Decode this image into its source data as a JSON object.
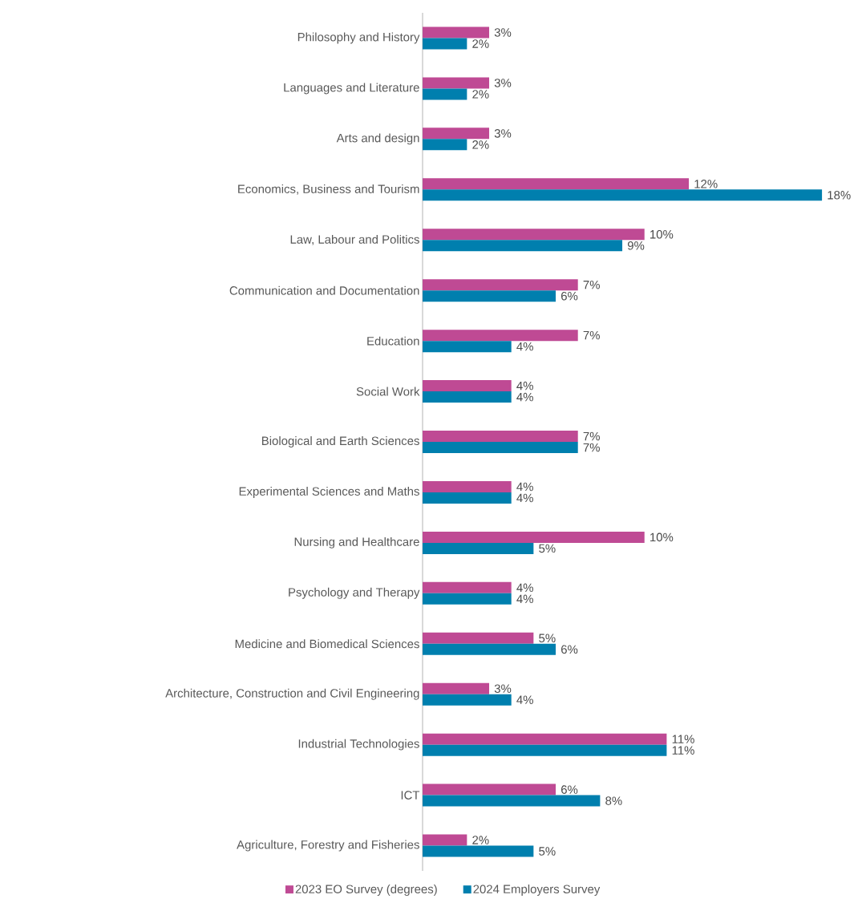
{
  "chart_data": {
    "type": "bar",
    "orientation": "horizontal",
    "categories": [
      "Philosophy and History",
      "Languages and Literature",
      "Arts and design",
      "Economics, Business and Tourism",
      "Law, Labour and Politics",
      "Communication and Documentation",
      "Education",
      "Social Work",
      "Biological and Earth Sciences",
      "Experimental Sciences and Maths",
      "Nursing and Healthcare",
      "Psychology and Therapy",
      "Medicine and Biomedical Sciences",
      "Architecture, Construction and Civil Engineering",
      "Industrial Technologies",
      "ICT",
      "Agriculture, Forestry and Fisheries"
    ],
    "series": [
      {
        "name": "2023 EO Survey (degrees)",
        "color": "#bf4a94",
        "values": [
          3,
          3,
          3,
          12,
          10,
          7,
          7,
          4,
          7,
          4,
          10,
          4,
          5,
          3,
          11,
          6,
          2
        ],
        "value_labels": [
          "3%",
          "3%",
          "3%",
          "12%",
          "10%",
          "7%",
          "7%",
          "4%",
          "7%",
          "4%",
          "10%",
          "4%",
          "5%",
          "3%",
          "11%",
          "6%",
          "2%"
        ]
      },
      {
        "name": "2024 Employers Survey",
        "color": "#007fae",
        "values": [
          2,
          2,
          2,
          18,
          9,
          6,
          4,
          4,
          7,
          4,
          5,
          4,
          6,
          4,
          11,
          8,
          5
        ],
        "value_labels": [
          "2%",
          "2%",
          "2%",
          "18%",
          "9%",
          "6%",
          "4%",
          "4%",
          "7%",
          "4%",
          "5%",
          "4%",
          "6%",
          "4%",
          "11%",
          "8%",
          "5%"
        ]
      }
    ],
    "legend": "bottom"
  }
}
